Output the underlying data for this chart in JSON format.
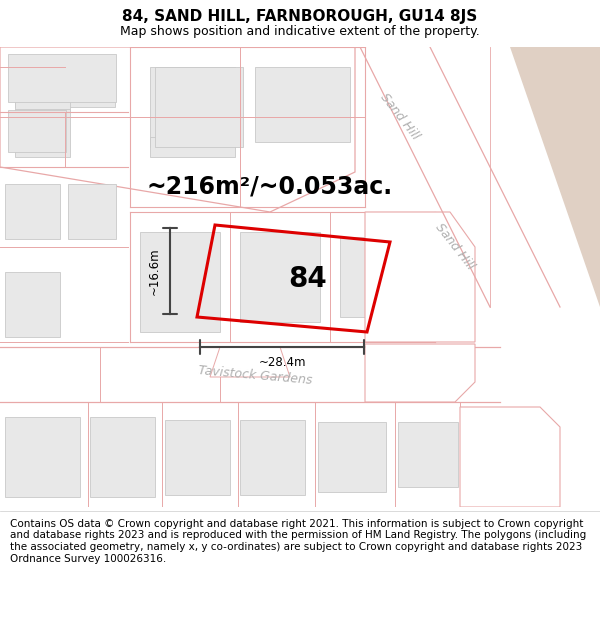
{
  "title": "84, SAND HILL, FARNBOROUGH, GU14 8JS",
  "subtitle": "Map shows position and indicative extent of the property.",
  "area_text": "~216m²/~0.053ac.",
  "property_number": "84",
  "dim_width": "~28.4m",
  "dim_height": "~16.6m",
  "footer_text": "Contains OS data © Crown copyright and database right 2021. This information is subject to Crown copyright and database rights 2023 and is reproduced with the permission of HM Land Registry. The polygons (including the associated geometry, namely x, y co-ordinates) are subject to Crown copyright and database rights 2023 Ordnance Survey 100026316.",
  "bg_color": "#ffffff",
  "map_bg_color": "#ffffff",
  "building_color": "#e8e8e8",
  "building_edge_color": "#c8c8c8",
  "road_line_color": "#e8a8a8",
  "property_edge_color": "#dd0000",
  "dim_line_color": "#444444",
  "sand_hill_bg": "#e8dad0",
  "title_fontsize": 11,
  "subtitle_fontsize": 9,
  "area_fontsize": 17,
  "label_fontsize": 20,
  "footer_fontsize": 7.5,
  "road_label_color": "#b0b0b0",
  "road_label_size": 9
}
